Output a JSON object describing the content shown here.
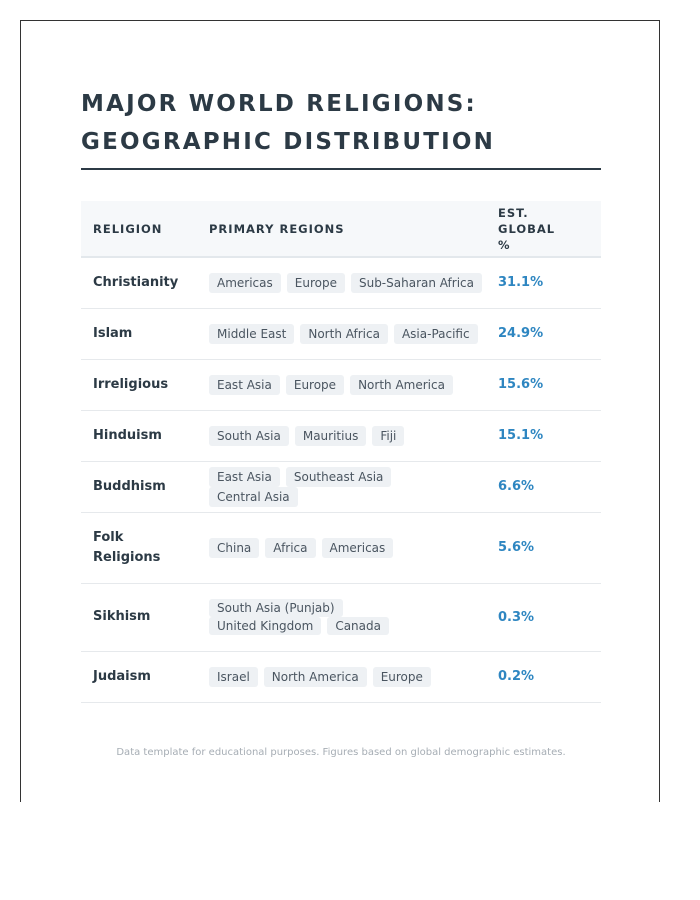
{
  "title_line1": "MAJOR WORLD RELIGIONS:",
  "title_line2": "GEOGRAPHIC DISTRIBUTION",
  "table": {
    "headers": {
      "religion": "RELIGION",
      "regions": "PRIMARY REGIONS",
      "pct_line1": "EST. GLOBAL",
      "pct_line2": "%"
    },
    "rows": [
      {
        "religion": "Christianity",
        "regions": [
          "Americas",
          "Europe",
          "Sub-Saharan Africa"
        ],
        "pct": "31.1%"
      },
      {
        "religion": "Islam",
        "regions": [
          "Middle East",
          "North Africa",
          "Asia-Pacific"
        ],
        "pct": "24.9%"
      },
      {
        "religion": "Irreligious",
        "regions": [
          "East Asia",
          "Europe",
          "North America"
        ],
        "pct": "15.6%"
      },
      {
        "religion": "Hinduism",
        "regions": [
          "South Asia",
          "Mauritius",
          "Fiji"
        ],
        "pct": "15.1%"
      },
      {
        "religion": "Buddhism",
        "regions": [
          "East Asia",
          "Southeast Asia",
          "Central Asia"
        ],
        "pct": "6.6%"
      },
      {
        "religion_line1": "Folk",
        "religion_line2": "Religions",
        "regions": [
          "China",
          "Africa",
          "Americas"
        ],
        "pct": "5.6%"
      },
      {
        "religion": "Sikhism",
        "regions": [
          "South Asia (Punjab)",
          "United Kingdom",
          "Canada"
        ],
        "pct": "0.3%"
      },
      {
        "religion": "Judaism",
        "regions": [
          "Israel",
          "North America",
          "Europe"
        ],
        "pct": "0.2%"
      }
    ]
  },
  "footnote": "Data template for educational purposes. Figures based on global demographic estimates."
}
